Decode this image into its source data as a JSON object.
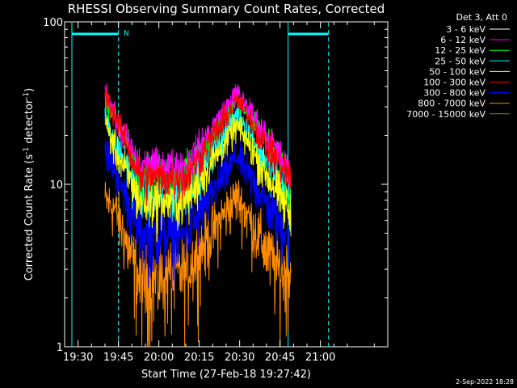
{
  "chart_data": {
    "type": "line",
    "title": "RHESSI Observing Summary Count Rates, Corrected",
    "xlabel": "Start Time (27-Feb-18 19:27:42)",
    "ylabel_main": "Corrected Count Rate (s",
    "ylabel_sup1": "-1",
    "ylabel_mid": " detector",
    "ylabel_sup2": "-1",
    "ylabel_end": ")",
    "yscale": "log",
    "ylim": [
      1,
      100
    ],
    "xlim": [
      "19:25",
      "21:25"
    ],
    "x_ticks": [
      "19:30",
      "19:45",
      "20:00",
      "20:15",
      "20:30",
      "20:45",
      "21:00"
    ],
    "y_ticks": [
      "1",
      "10",
      "100"
    ],
    "legend_header": "Det 3, Att 0",
    "legend_position": "top-right",
    "footer_date": "2-Sep-2022 18:28",
    "annotations": {
      "night_label": "N",
      "night_intervals": [
        [
          "19:27:42",
          "19:45"
        ],
        [
          "20:48",
          "21:03"
        ]
      ]
    },
    "data_span": [
      "19:40",
      "20:49"
    ],
    "series": [
      {
        "name": "3 - 6 keV",
        "color": "#ffffff",
        "anchors": [
          [
            0,
            0
          ],
          [
            4,
            0
          ],
          [
            13,
            0
          ],
          [
            30,
            0
          ],
          [
            49,
            0
          ],
          [
            64,
            0
          ],
          [
            69,
            0
          ]
        ]
      },
      {
        "name": "6 - 12 keV",
        "color": "#ff00ff",
        "anchors": [
          [
            0,
            40
          ],
          [
            4,
            25
          ],
          [
            13,
            13
          ],
          [
            30,
            13
          ],
          [
            49,
            37
          ],
          [
            64,
            16
          ],
          [
            69,
            11
          ]
        ]
      },
      {
        "name": "12 - 25 keV",
        "color": "#00ff00",
        "anchors": [
          [
            0,
            35
          ],
          [
            4,
            25
          ],
          [
            13,
            12
          ],
          [
            30,
            12
          ],
          [
            49,
            33
          ],
          [
            64,
            15
          ],
          [
            69,
            10
          ]
        ]
      },
      {
        "name": "25 - 50 keV",
        "color": "#00ffff",
        "anchors": [
          [
            0,
            28
          ],
          [
            4,
            18
          ],
          [
            13,
            9
          ],
          [
            30,
            9
          ],
          [
            49,
            28
          ],
          [
            64,
            11
          ],
          [
            69,
            8
          ]
        ]
      },
      {
        "name": "50 - 100 keV",
        "color": "#ffff00",
        "anchors": [
          [
            0,
            24
          ],
          [
            4,
            16
          ],
          [
            13,
            8
          ],
          [
            30,
            8
          ],
          [
            49,
            23
          ],
          [
            64,
            9
          ],
          [
            69,
            6.5
          ]
        ]
      },
      {
        "name": "100 - 300 keV",
        "color": "#ff0000",
        "anchors": [
          [
            0,
            36
          ],
          [
            4,
            26
          ],
          [
            13,
            11
          ],
          [
            30,
            11
          ],
          [
            49,
            33
          ],
          [
            64,
            14
          ],
          [
            69,
            11
          ]
        ]
      },
      {
        "name": "300 - 800 keV",
        "color": "#0000ff",
        "anchors": [
          [
            0,
            17
          ],
          [
            4,
            12
          ],
          [
            13,
            5
          ],
          [
            30,
            5
          ],
          [
            49,
            15
          ],
          [
            64,
            6
          ],
          [
            69,
            5
          ]
        ]
      },
      {
        "name": "800 - 7000 keV",
        "color": "#ff8c00",
        "anchors": [
          [
            0,
            8
          ],
          [
            4,
            7
          ],
          [
            13,
            2.5
          ],
          [
            30,
            3
          ],
          [
            49,
            8.5
          ],
          [
            64,
            3
          ],
          [
            69,
            3
          ]
        ]
      },
      {
        "name": "7000 - 15000 keV",
        "color": "#808000",
        "anchors": [
          [
            0,
            0
          ],
          [
            4,
            0
          ],
          [
            13,
            0
          ],
          [
            30,
            0
          ],
          [
            49,
            0
          ],
          [
            64,
            0
          ],
          [
            69,
            0
          ]
        ]
      }
    ]
  }
}
